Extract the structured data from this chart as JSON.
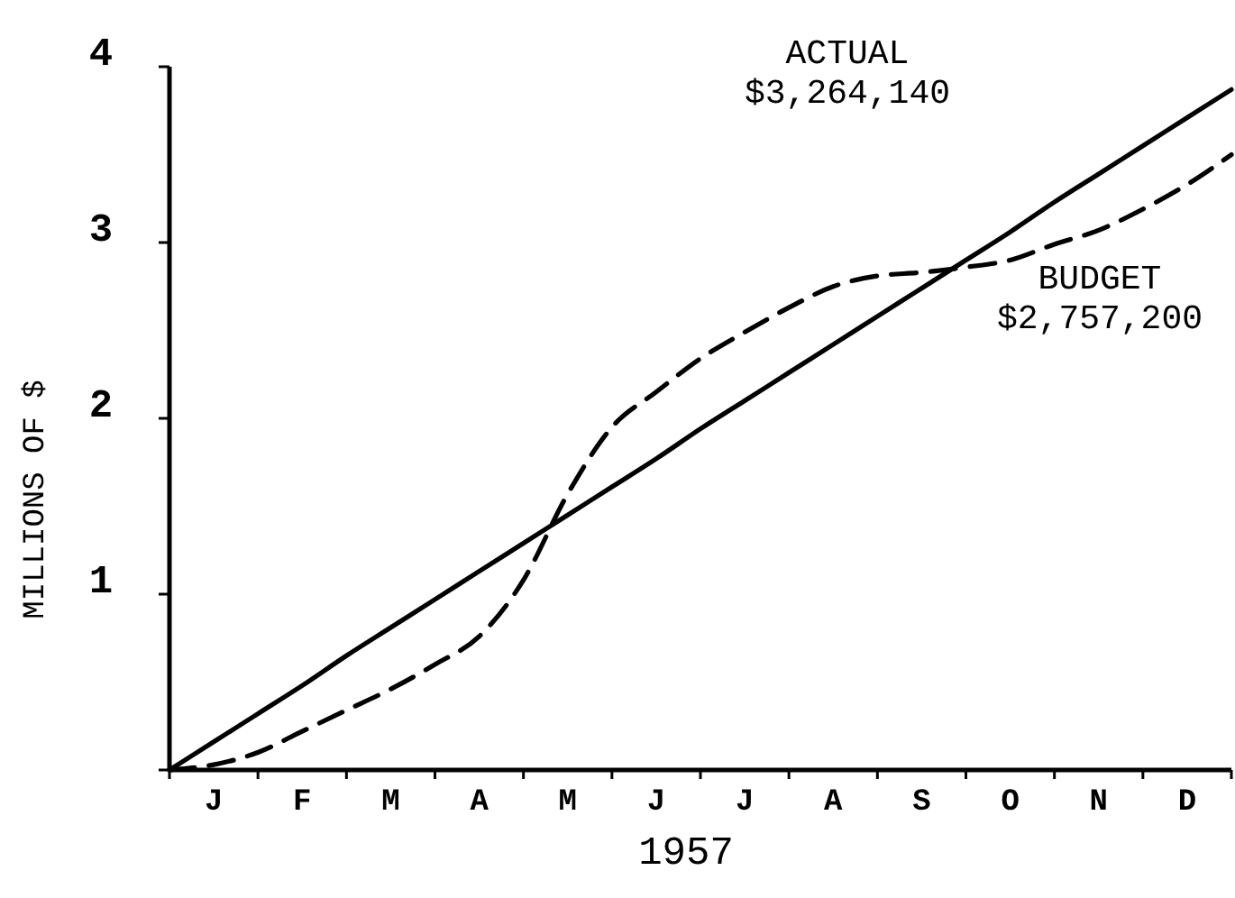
{
  "chart_data": {
    "type": "line",
    "xlabel": "1957",
    "ylabel": "MILLIONS OF $",
    "categories": [
      null,
      "J",
      null,
      "F",
      null,
      "M",
      null,
      "A",
      null,
      "M",
      null,
      "J",
      null,
      "J",
      null,
      "A",
      null,
      "S",
      null,
      "O",
      null,
      "N",
      null,
      "D",
      null
    ],
    "ylim": [
      0,
      4
    ],
    "yticks": [
      {
        "value": 0,
        "label": null
      },
      1,
      2,
      3,
      4
    ],
    "grid": false,
    "marker": "none",
    "annotations": [
      "ACTUAL\n$3,264,140",
      "BUDGET\n$2,757,200"
    ],
    "series": [
      {
        "color": "#000000",
        "line_style": "solid",
        "values": [
          0,
          0.16,
          0.32,
          0.48,
          0.65,
          0.81,
          0.97,
          1.13,
          1.29,
          1.45,
          1.61,
          1.77,
          1.94,
          2.1,
          2.26,
          2.42,
          2.58,
          2.74,
          2.9,
          3.06,
          3.23,
          3.39,
          3.55,
          3.71,
          3.87
        ]
      },
      {
        "color": "#000000",
        "line_style": "dashed",
        "values": [
          0,
          0.03,
          0.1,
          0.22,
          0.34,
          0.46,
          0.6,
          0.76,
          1.08,
          1.57,
          1.95,
          2.15,
          2.34,
          2.49,
          2.63,
          2.75,
          2.81,
          2.83,
          2.86,
          2.9,
          2.99,
          3.07,
          3.19,
          3.33,
          3.5
        ]
      }
    ]
  }
}
